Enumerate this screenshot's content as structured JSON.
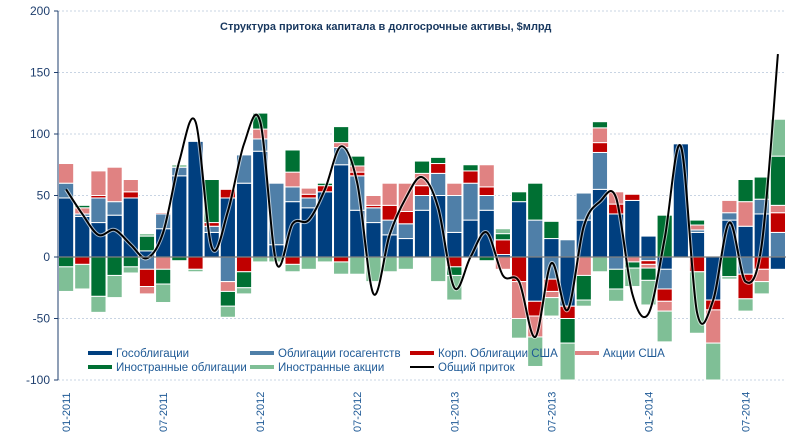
{
  "chart_data": {
    "type": "bar",
    "stacked": true,
    "title": "Структура притока капитала в долгосрочные активы, $млрд",
    "xlabel": "",
    "ylabel": "",
    "ylim": [
      -100,
      200
    ],
    "yticks": [
      200,
      150,
      100,
      50,
      0,
      -50,
      -100
    ],
    "ytick_labels": [
      "200",
      "150",
      "100",
      "50",
      "0",
      "-50",
      "-100"
    ],
    "xtick_labels": [
      "01-2011",
      "07-2011",
      "01-2012",
      "07-2012",
      "01-2013",
      "07-2013",
      "01-2014",
      "07-2014"
    ],
    "xtick_index": [
      0,
      6,
      12,
      18,
      24,
      30,
      36,
      42
    ],
    "grid": true,
    "legend_position": "bottom-left",
    "series": [
      {
        "name": "Гособлигации",
        "color": "#003f7f",
        "values": [
          48,
          33,
          28,
          34,
          48,
          5,
          23,
          66,
          94,
          20,
          48,
          60,
          86,
          10,
          45,
          40,
          53,
          75,
          38,
          28,
          18,
          15,
          38,
          50,
          20,
          30,
          38,
          2,
          45,
          -36,
          15,
          -40,
          30,
          55,
          35,
          46,
          17,
          -10,
          92,
          20,
          -35,
          30,
          25,
          35,
          -10
        ]
      },
      {
        "name": "Облигации госагентств",
        "color": "#4f7fa8",
        "values": [
          12,
          2,
          20,
          11,
          0,
          -10,
          12,
          7,
          0,
          5,
          -20,
          23,
          10,
          50,
          12,
          8,
          0,
          14,
          28,
          12,
          12,
          12,
          12,
          18,
          30,
          30,
          12,
          0,
          0,
          30,
          -18,
          14,
          22,
          30,
          -10,
          0,
          -3,
          -16,
          0,
          2,
          0,
          6,
          -14,
          12,
          20
        ]
      },
      {
        "name": "Корп. Облигации США",
        "color": "#c00000",
        "values": [
          0,
          -6,
          2,
          0,
          5,
          -14,
          1,
          0,
          -10,
          3,
          7,
          -12,
          0,
          0,
          -6,
          3,
          5,
          -4,
          3,
          2,
          12,
          10,
          8,
          8,
          -8,
          10,
          7,
          12,
          -20,
          -12,
          -10,
          -10,
          0,
          8,
          8,
          5,
          -3,
          -10,
          0,
          -12,
          -8,
          0,
          -20,
          -10,
          16
        ]
      },
      {
        "name": "Акции США",
        "color": "#e08282",
        "values": [
          16,
          5,
          20,
          28,
          10,
          -6,
          -10,
          0,
          0,
          0,
          -8,
          0,
          8,
          0,
          12,
          5,
          0,
          4,
          5,
          8,
          18,
          23,
          10,
          0,
          10,
          0,
          18,
          -10,
          -30,
          -17,
          -5,
          0,
          -15,
          12,
          10,
          -4,
          -3,
          -8,
          0,
          4,
          -27,
          10,
          20,
          -10,
          6
        ]
      },
      {
        "name": "Иностранные облигации",
        "color": "#007033",
        "values": [
          -8,
          2,
          -32,
          -15,
          -8,
          12,
          -12,
          -3,
          0,
          35,
          -12,
          -13,
          13,
          0,
          18,
          0,
          2,
          13,
          8,
          0,
          0,
          0,
          10,
          5,
          -7,
          5,
          -3,
          5,
          8,
          30,
          14,
          -20,
          -20,
          5,
          -16,
          -5,
          -10,
          34,
          0,
          4,
          0,
          -16,
          18,
          18,
          40
        ]
      },
      {
        "name": "Иностранные акции",
        "color": "#7fbf96",
        "values": [
          -20,
          -20,
          -13,
          -18,
          -5,
          2,
          -15,
          2,
          -2,
          0,
          -9,
          -5,
          -4,
          -4,
          -6,
          -10,
          -4,
          -10,
          -14,
          -20,
          -12,
          -10,
          0,
          -20,
          -20,
          0,
          0,
          4,
          -16,
          -24,
          -15,
          -30,
          -5,
          -12,
          -10,
          -15,
          -20,
          -25,
          0,
          -50,
          -30,
          -2,
          -10,
          -10,
          30
        ]
      }
    ],
    "total": {
      "name": "Общий приток",
      "color": "#000000",
      "values": [
        55,
        35,
        18,
        22,
        10,
        -1,
        20,
        78,
        110,
        8,
        37,
        92,
        110,
        -5,
        27,
        30,
        55,
        90,
        60,
        -30,
        18,
        48,
        65,
        40,
        -25,
        0,
        20,
        -15,
        -20,
        -65,
        -5,
        -43,
        25,
        45,
        48,
        -30,
        -46,
        15,
        90,
        -45,
        -35,
        28,
        -20,
        10,
        165
      ]
    },
    "months": [
      "01-2011",
      "02-2011",
      "03-2011",
      "04-2011",
      "05-2011",
      "06-2011",
      "07-2011",
      "08-2011",
      "09-2011",
      "10-2011",
      "11-2011",
      "12-2011",
      "01-2012",
      "02-2012",
      "03-2012",
      "04-2012",
      "05-2012",
      "06-2012",
      "07-2012",
      "08-2012",
      "09-2012",
      "10-2012",
      "11-2012",
      "12-2012",
      "01-2013",
      "02-2013",
      "03-2013",
      "04-2013",
      "05-2013",
      "06-2013",
      "07-2013",
      "08-2013",
      "09-2013",
      "10-2013",
      "11-2013",
      "12-2013",
      "01-2014",
      "02-2014",
      "03-2014",
      "04-2014",
      "05-2014",
      "06-2014",
      "07-2014",
      "08-2014",
      "09-2014"
    ]
  }
}
